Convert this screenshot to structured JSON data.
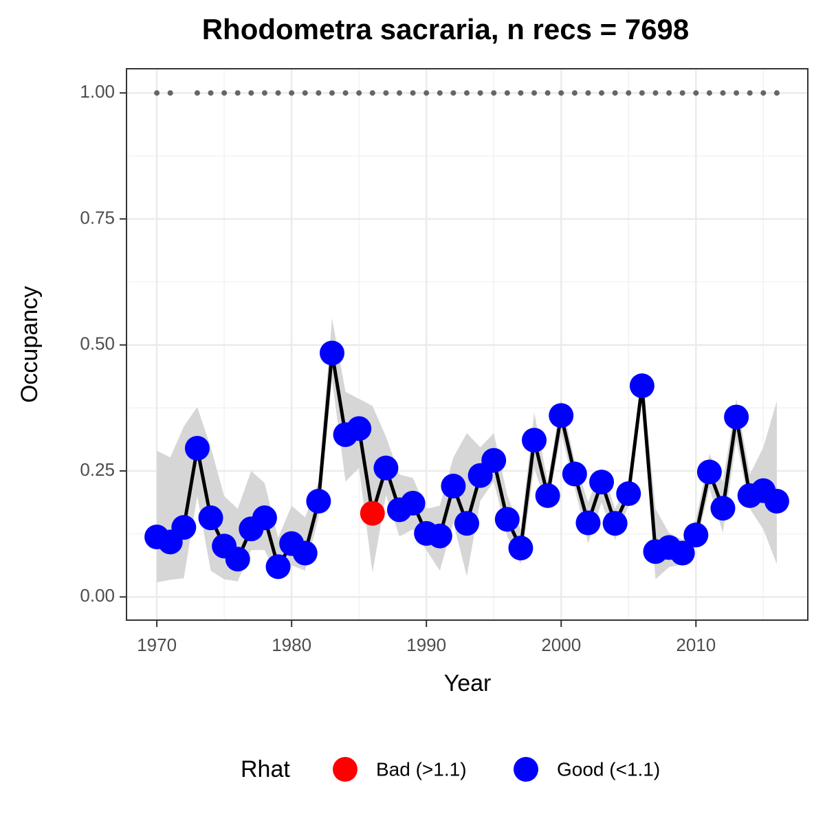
{
  "chart_data": {
    "type": "line",
    "title": "Rhodometra sacraria, n recs = 7698",
    "x_label": "Year",
    "y_label": "Occupancy",
    "x": [
      1970,
      1971,
      1972,
      1973,
      1974,
      1975,
      1976,
      1977,
      1978,
      1979,
      1980,
      1981,
      1982,
      1983,
      1984,
      1985,
      1986,
      1987,
      1988,
      1989,
      1990,
      1991,
      1992,
      1993,
      1994,
      1995,
      1996,
      1997,
      1998,
      1999,
      2000,
      2001,
      2002,
      2003,
      2004,
      2005,
      2006,
      2007,
      2008,
      2009,
      2010,
      2011,
      2012,
      2013,
      2014,
      2015,
      2016
    ],
    "series": [
      {
        "color": "#000000",
        "band_color": "#d6d6d6",
        "values": [
          0.119,
          0.109,
          0.138,
          0.295,
          0.157,
          0.101,
          0.075,
          0.135,
          0.157,
          0.06,
          0.106,
          0.087,
          0.19,
          0.484,
          0.322,
          0.334,
          0.166,
          0.256,
          0.173,
          0.186,
          0.126,
          0.121,
          0.22,
          0.146,
          0.241,
          0.271,
          0.154,
          0.097,
          0.311,
          0.201,
          0.36,
          0.244,
          0.147,
          0.228,
          0.146,
          0.205,
          0.419,
          0.09,
          0.098,
          0.087,
          0.123,
          0.248,
          0.176,
          0.357,
          0.201,
          0.211,
          0.19
        ],
        "lower": [
          0.029,
          0.034,
          0.037,
          0.2,
          0.052,
          0.035,
          0.031,
          0.093,
          0.093,
          0.038,
          0.063,
          0.052,
          0.158,
          0.431,
          0.229,
          0.256,
          0.048,
          0.202,
          0.12,
          0.134,
          0.093,
          0.052,
          0.147,
          0.041,
          0.191,
          0.229,
          0.12,
          0.065,
          0.256,
          0.175,
          0.325,
          0.216,
          0.106,
          0.188,
          0.113,
          0.181,
          0.393,
          0.035,
          0.059,
          0.065,
          0.1,
          0.216,
          0.127,
          0.311,
          0.175,
          0.134,
          0.065
        ],
        "upper": [
          0.29,
          0.277,
          0.338,
          0.377,
          0.297,
          0.2,
          0.175,
          0.25,
          0.226,
          0.117,
          0.181,
          0.158,
          0.229,
          0.553,
          0.407,
          0.393,
          0.379,
          0.318,
          0.243,
          0.236,
          0.175,
          0.181,
          0.277,
          0.325,
          0.297,
          0.325,
          0.202,
          0.134,
          0.366,
          0.229,
          0.393,
          0.27,
          0.188,
          0.256,
          0.175,
          0.229,
          0.447,
          0.175,
          0.127,
          0.113,
          0.154,
          0.284,
          0.229,
          0.393,
          0.243,
          0.297,
          0.389
        ],
        "point_colors": [
          "#0000ff",
          "#0000ff",
          "#0000ff",
          "#0000ff",
          "#0000ff",
          "#0000ff",
          "#0000ff",
          "#0000ff",
          "#0000ff",
          "#0000ff",
          "#0000ff",
          "#0000ff",
          "#0000ff",
          "#0000ff",
          "#0000ff",
          "#0000ff",
          "#ff0000",
          "#0000ff",
          "#0000ff",
          "#0000ff",
          "#0000ff",
          "#0000ff",
          "#0000ff",
          "#0000ff",
          "#0000ff",
          "#0000ff",
          "#0000ff",
          "#0000ff",
          "#0000ff",
          "#0000ff",
          "#0000ff",
          "#0000ff",
          "#0000ff",
          "#0000ff",
          "#0000ff",
          "#0000ff",
          "#0000ff",
          "#0000ff",
          "#0000ff",
          "#0000ff",
          "#0000ff",
          "#0000ff",
          "#0000ff",
          "#0000ff",
          "#0000ff",
          "#0000ff",
          "#0000ff"
        ]
      }
    ],
    "top_dots": {
      "color": "#666666",
      "values": [
        1,
        1,
        null,
        1,
        1,
        1,
        1,
        1,
        1,
        1,
        1,
        1,
        1,
        1,
        1,
        1,
        1,
        1,
        1,
        1,
        1,
        1,
        1,
        1,
        1,
        1,
        1,
        1,
        1,
        1,
        1,
        1,
        1,
        1,
        1,
        1,
        1,
        1,
        1,
        1,
        1,
        1,
        1,
        1,
        1,
        1,
        1
      ]
    },
    "xlim": [
      1967.75,
      2018.3
    ],
    "ylim": [
      -0.046,
      1.048
    ],
    "xticks": [
      1970,
      1980,
      1990,
      2000,
      2010
    ],
    "yticks": [
      {
        "value": 0,
        "label": "0.00"
      },
      {
        "value": 0.25,
        "label": "0.25"
      },
      {
        "value": 0.5,
        "label": "0.50"
      },
      {
        "value": 0.75,
        "label": "0.75"
      },
      {
        "value": 1,
        "label": "1.00"
      }
    ],
    "x_minor_ticks": [
      1975,
      1985,
      1995,
      2005,
      2015
    ],
    "y_minor_ticks": [
      0.125,
      0.375,
      0.625,
      0.875
    ],
    "grid": true,
    "legend": {
      "position": "bottom",
      "title": "Rhat",
      "entries": [
        {
          "label": "Bad (>1.1)",
          "color": "#ff0000"
        },
        {
          "label": "Good (<1.1)",
          "color": "#0000ff"
        }
      ]
    }
  }
}
